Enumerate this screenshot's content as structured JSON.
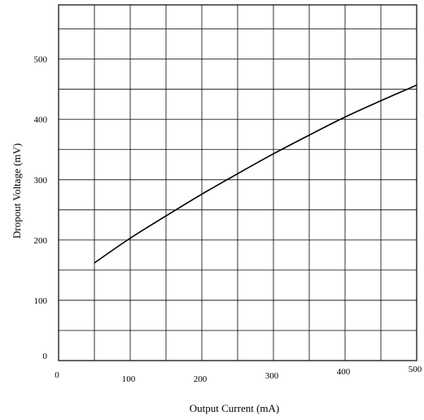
{
  "chart_data": {
    "type": "line",
    "title": "",
    "xlabel": "Output Current (mA)",
    "ylabel": "Dropout Voltage (mV)",
    "xlim": [
      0,
      500
    ],
    "ylim": [
      0,
      590
    ],
    "grid": true,
    "x_ticks": [
      0,
      100,
      200,
      300,
      400,
      500
    ],
    "x_tick_labels": [
      "0",
      "100",
      "200",
      "300",
      "400",
      "500"
    ],
    "y_ticks": [
      0,
      100,
      200,
      300,
      400,
      500
    ],
    "y_tick_labels": [
      "0",
      "100",
      "200",
      "300",
      "400",
      "500"
    ],
    "x_grid_step": 50,
    "y_grid_step": 50,
    "series": [
      {
        "x": [
          50,
          100,
          150,
          200,
          250,
          300,
          350,
          400,
          450,
          500
        ],
        "y": [
          162,
          203,
          240,
          276,
          310,
          343,
          374,
          404,
          431,
          457
        ]
      }
    ],
    "colors": {
      "line": "#000000",
      "grid": "#000000",
      "frame": "#000000"
    }
  }
}
